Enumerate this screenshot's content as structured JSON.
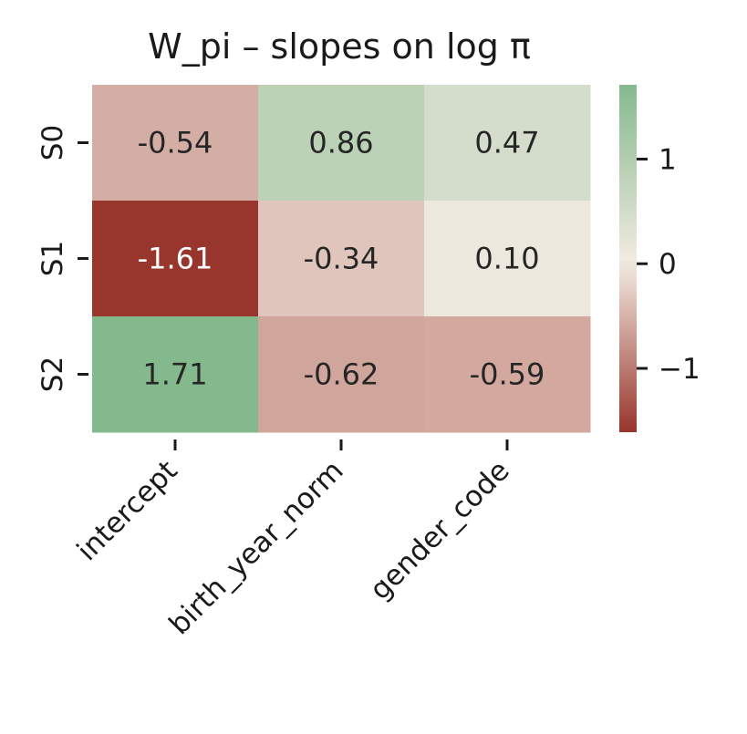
{
  "chart_data": {
    "type": "heatmap",
    "title": "W_pi – slopes on log π",
    "x_categories": [
      "intercept",
      "birth_year_norm",
      "gender_code"
    ],
    "y_categories": [
      "S0",
      "S1",
      "S2"
    ],
    "values": [
      [
        -0.54,
        0.86,
        0.47
      ],
      [
        -1.61,
        -0.34,
        0.1
      ],
      [
        1.71,
        -0.62,
        -0.59
      ]
    ],
    "cell_labels": [
      [
        "-0.54",
        "0.86",
        "0.47"
      ],
      [
        "-1.61",
        "-0.34",
        "0.10"
      ],
      [
        "1.71",
        "-0.62",
        "-0.59"
      ]
    ],
    "value_range": [
      -1.61,
      1.71
    ],
    "colorbar": {
      "ticks": [
        1,
        0,
        -1
      ],
      "tick_labels": [
        "1",
        "0",
        "−1"
      ]
    },
    "colormap": {
      "low": "#922a21",
      "mid": "#f3ebe2",
      "high": "#84b98d"
    },
    "grid": false,
    "xlabel": "",
    "ylabel": ""
  }
}
